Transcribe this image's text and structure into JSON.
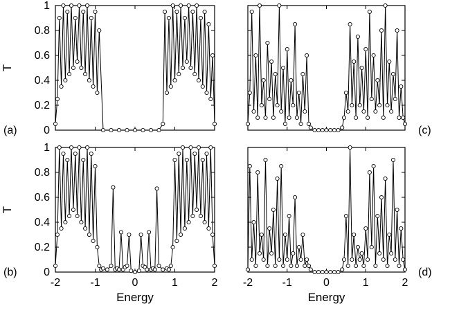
{
  "figure": {
    "x_axis_title": "Energy",
    "y_axis_title": "T"
  },
  "chart_data": [
    {
      "type": "line",
      "panel": "(a)",
      "xlim": [
        -2,
        2
      ],
      "ylim": [
        0,
        1
      ],
      "x_ticks": [],
      "y_ticks": [
        "0",
        "0.2",
        "0.4",
        "0.6",
        "0.8",
        "1"
      ],
      "xlabel": "",
      "ylabel": "T",
      "grid": false,
      "markers": "open-circles",
      "series": [
        {
          "x": [
            -2.0,
            -1.95,
            -1.9,
            -1.85,
            -1.8,
            -1.75,
            -1.7,
            -1.65,
            -1.6,
            -1.55,
            -1.5,
            -1.45,
            -1.4,
            -1.35,
            -1.3,
            -1.25,
            -1.2,
            -1.15,
            -1.1,
            -1.05,
            -1.0,
            -0.95,
            -0.9,
            -0.8,
            -0.6,
            -0.4,
            -0.2,
            0.0,
            0.2,
            0.4,
            0.6,
            0.7,
            0.75,
            0.8,
            0.85,
            0.9,
            0.95,
            1.0,
            1.05,
            1.1,
            1.15,
            1.2,
            1.25,
            1.3,
            1.35,
            1.4,
            1.45,
            1.5,
            1.55,
            1.6,
            1.65,
            1.7,
            1.75,
            1.8,
            1.85,
            1.9,
            1.95,
            2.0
          ],
          "y": [
            0.05,
            0.25,
            0.9,
            0.35,
            1.0,
            0.4,
            0.95,
            0.45,
            1.0,
            0.5,
            0.9,
            0.55,
            1.0,
            0.5,
            0.95,
            0.45,
            1.0,
            0.4,
            0.9,
            0.35,
            0.95,
            0.3,
            0.8,
            0.0,
            0.0,
            0.0,
            0.0,
            0.0,
            0.0,
            0.0,
            0.0,
            0.05,
            0.95,
            0.3,
            0.9,
            0.35,
            1.0,
            0.4,
            0.95,
            0.45,
            1.0,
            0.5,
            0.9,
            0.55,
            1.0,
            0.5,
            0.95,
            0.45,
            1.0,
            0.4,
            0.9,
            0.35,
            0.95,
            0.3,
            0.85,
            0.25,
            0.6,
            0.05
          ]
        }
      ]
    },
    {
      "type": "line",
      "panel": "(c)",
      "xlim": [
        -2,
        2
      ],
      "ylim": [
        0,
        1
      ],
      "x_ticks": [],
      "y_ticks": [],
      "xlabel": "",
      "ylabel": "",
      "grid": false,
      "markers": "open-circles",
      "series": [
        {
          "x": [
            -2.0,
            -1.95,
            -1.9,
            -1.85,
            -1.8,
            -1.75,
            -1.7,
            -1.65,
            -1.6,
            -1.55,
            -1.5,
            -1.45,
            -1.4,
            -1.35,
            -1.3,
            -1.25,
            -1.2,
            -1.15,
            -1.1,
            -1.05,
            -1.0,
            -0.95,
            -0.9,
            -0.85,
            -0.8,
            -0.75,
            -0.7,
            -0.65,
            -0.6,
            -0.55,
            -0.5,
            -0.45,
            -0.4,
            -0.3,
            -0.2,
            -0.1,
            0.0,
            0.1,
            0.2,
            0.3,
            0.4,
            0.45,
            0.5,
            0.55,
            0.6,
            0.65,
            0.7,
            0.75,
            0.8,
            0.85,
            0.9,
            0.95,
            1.0,
            1.05,
            1.1,
            1.15,
            1.2,
            1.25,
            1.3,
            1.35,
            1.4,
            1.45,
            1.5,
            1.55,
            1.6,
            1.65,
            1.7,
            1.75,
            1.8,
            1.85,
            1.9,
            1.95,
            2.0
          ],
          "y": [
            0.05,
            0.3,
            0.95,
            0.15,
            0.6,
            0.1,
            1.0,
            0.2,
            0.4,
            0.1,
            0.7,
            0.25,
            0.55,
            0.1,
            0.45,
            0.2,
            1.0,
            0.15,
            0.5,
            0.05,
            0.65,
            0.1,
            0.4,
            0.2,
            0.85,
            0.1,
            0.3,
            0.05,
            0.45,
            0.15,
            0.6,
            0.05,
            0.02,
            0.0,
            0.0,
            0.0,
            0.0,
            0.0,
            0.0,
            0.0,
            0.02,
            0.1,
            0.3,
            0.15,
            0.85,
            0.2,
            0.55,
            0.1,
            0.75,
            0.2,
            0.5,
            0.15,
            0.65,
            0.1,
            0.95,
            0.25,
            0.6,
            0.15,
            0.4,
            0.2,
            0.8,
            0.1,
            1.0,
            0.2,
            0.55,
            0.15,
            0.45,
            0.25,
            0.8,
            0.1,
            0.35,
            0.1,
            0.05
          ]
        }
      ]
    },
    {
      "type": "line",
      "panel": "(b)",
      "xlim": [
        -2,
        2
      ],
      "ylim": [
        0,
        1
      ],
      "x_ticks": [
        "-2",
        "-1",
        "0",
        "1",
        "2"
      ],
      "y_ticks": [
        "0",
        "0.2",
        "0.4",
        "0.6",
        "0.8",
        "1"
      ],
      "xlabel": "Energy",
      "ylabel": "T",
      "grid": false,
      "markers": "open-circles",
      "series": [
        {
          "x": [
            -2.0,
            -1.95,
            -1.9,
            -1.85,
            -1.8,
            -1.75,
            -1.7,
            -1.65,
            -1.6,
            -1.55,
            -1.5,
            -1.45,
            -1.4,
            -1.35,
            -1.3,
            -1.25,
            -1.2,
            -1.15,
            -1.1,
            -1.05,
            -1.0,
            -0.95,
            -0.9,
            -0.85,
            -0.8,
            -0.7,
            -0.6,
            -0.55,
            -0.5,
            -0.45,
            -0.4,
            -0.35,
            -0.3,
            -0.25,
            -0.2,
            -0.15,
            -0.1,
            0.0,
            0.1,
            0.15,
            0.2,
            0.25,
            0.3,
            0.35,
            0.4,
            0.45,
            0.5,
            0.55,
            0.6,
            0.7,
            0.8,
            0.85,
            0.9,
            0.95,
            1.0,
            1.05,
            1.1,
            1.15,
            1.2,
            1.25,
            1.3,
            1.35,
            1.4,
            1.45,
            1.5,
            1.55,
            1.6,
            1.65,
            1.7,
            1.75,
            1.8,
            1.85,
            1.9,
            1.95,
            2.0
          ],
          "y": [
            0.05,
            0.3,
            1.0,
            0.35,
            0.95,
            0.4,
            0.9,
            0.45,
            1.0,
            0.5,
            0.95,
            0.45,
            1.0,
            0.4,
            0.9,
            0.35,
            1.0,
            0.3,
            0.95,
            0.25,
            0.85,
            0.2,
            0.05,
            0.02,
            0.03,
            0.02,
            0.05,
            0.68,
            0.02,
            0.03,
            0.02,
            0.32,
            0.02,
            0.04,
            0.05,
            0.3,
            0.01,
            0.0,
            0.01,
            0.3,
            0.05,
            0.04,
            0.02,
            0.32,
            0.02,
            0.03,
            0.02,
            0.67,
            0.05,
            0.02,
            0.03,
            0.02,
            0.05,
            0.2,
            0.9,
            0.25,
            0.95,
            0.3,
            1.0,
            0.35,
            0.9,
            0.4,
            1.0,
            0.45,
            0.95,
            0.5,
            1.0,
            0.45,
            0.9,
            0.4,
            0.95,
            0.35,
            1.0,
            0.3,
            0.05
          ]
        }
      ]
    },
    {
      "type": "line",
      "panel": "(d)",
      "xlim": [
        -2,
        2
      ],
      "ylim": [
        0,
        1
      ],
      "x_ticks": [
        "-2",
        "-1",
        "0",
        "1",
        "2"
      ],
      "y_ticks": [],
      "xlabel": "Energy",
      "ylabel": "",
      "grid": false,
      "markers": "open-circles",
      "series": [
        {
          "x": [
            -2.0,
            -1.95,
            -1.9,
            -1.85,
            -1.8,
            -1.75,
            -1.7,
            -1.65,
            -1.6,
            -1.55,
            -1.5,
            -1.45,
            -1.4,
            -1.35,
            -1.3,
            -1.25,
            -1.2,
            -1.15,
            -1.1,
            -1.05,
            -1.0,
            -0.95,
            -0.9,
            -0.85,
            -0.8,
            -0.75,
            -0.7,
            -0.65,
            -0.6,
            -0.55,
            -0.5,
            -0.45,
            -0.4,
            -0.3,
            -0.2,
            -0.1,
            0.0,
            0.1,
            0.2,
            0.3,
            0.4,
            0.45,
            0.5,
            0.55,
            0.6,
            0.65,
            0.7,
            0.75,
            0.8,
            0.85,
            0.9,
            0.95,
            1.0,
            1.05,
            1.1,
            1.15,
            1.2,
            1.25,
            1.3,
            1.35,
            1.4,
            1.45,
            1.5,
            1.55,
            1.6,
            1.65,
            1.7,
            1.75,
            1.8,
            1.85,
            1.9,
            1.95,
            2.0
          ],
          "y": [
            0.02,
            0.85,
            0.1,
            0.4,
            0.05,
            0.8,
            0.15,
            0.3,
            0.1,
            0.9,
            0.05,
            0.35,
            0.15,
            0.5,
            0.05,
            0.75,
            0.1,
            0.85,
            0.05,
            0.3,
            0.1,
            0.45,
            0.05,
            0.15,
            0.6,
            0.05,
            0.2,
            0.1,
            0.3,
            0.05,
            0.1,
            0.05,
            0.02,
            0.0,
            0.0,
            0.0,
            0.0,
            0.0,
            0.0,
            0.0,
            0.02,
            0.1,
            0.45,
            0.05,
            1.0,
            0.1,
            0.3,
            0.05,
            0.2,
            0.1,
            0.15,
            0.05,
            0.35,
            0.1,
            0.8,
            0.2,
            0.85,
            0.05,
            0.45,
            0.15,
            0.6,
            0.1,
            0.75,
            0.05,
            0.3,
            0.15,
            0.9,
            0.1,
            0.5,
            0.05,
            0.35,
            0.1,
            0.02
          ]
        }
      ]
    }
  ]
}
